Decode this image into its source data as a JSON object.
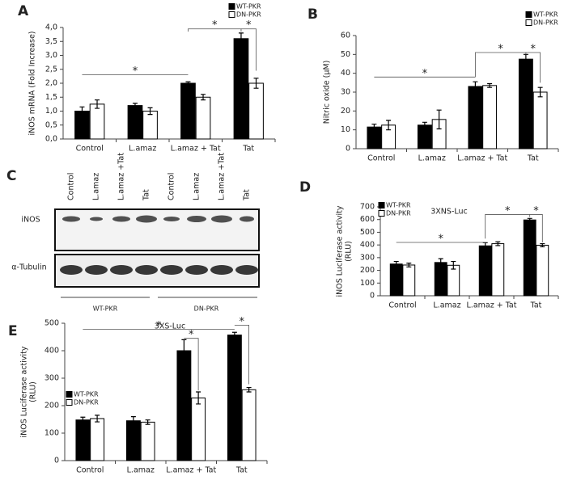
{
  "chart_data": [
    {
      "type": "bar",
      "panel": "A",
      "ylabel": "iNOS mRNA (Fold Increase)",
      "categories": [
        "Control",
        "L.amaz",
        "L.amaz + Tat",
        "Tat"
      ],
      "series": [
        {
          "name": "WT-PKR",
          "color": "#000000",
          "values": [
            1.0,
            1.2,
            2.0,
            3.6
          ],
          "errors": [
            0.15,
            0.08,
            0.05,
            0.2
          ]
        },
        {
          "name": "DN-PKR",
          "color": "#ffffff",
          "values": [
            1.25,
            1.0,
            1.5,
            2.0
          ],
          "errors": [
            0.15,
            0.12,
            0.1,
            0.18
          ]
        }
      ],
      "ylim": [
        0,
        4
      ],
      "yticks": [
        {
          "value": 0,
          "label": "0,0"
        },
        {
          "value": 0.5,
          "label": "0,5"
        },
        {
          "value": 1,
          "label": "1,0"
        },
        {
          "value": 1.5,
          "label": "1,5"
        },
        {
          "value": 2,
          "label": "2,0"
        },
        {
          "value": 2.5,
          "label": "2,5"
        },
        {
          "value": 3,
          "label": "3,0"
        },
        {
          "value": 3.5,
          "label": "3,5"
        },
        {
          "value": 4,
          "label": "4,0"
        }
      ],
      "annotations": [
        "*",
        "*",
        "*"
      ],
      "legend": "upper right"
    },
    {
      "type": "bar",
      "panel": "B",
      "ylabel": "Nitric oxide (µM)",
      "categories": [
        "Control",
        "L.amaz",
        "L.amaz + Tat",
        "Tat"
      ],
      "series": [
        {
          "name": "WT-PKR",
          "color": "#000000",
          "values": [
            11.5,
            12.5,
            33,
            47.5
          ],
          "errors": [
            1.5,
            1.5,
            2.5,
            2.5
          ]
        },
        {
          "name": "DN-PKR",
          "color": "#ffffff",
          "values": [
            12.5,
            15.5,
            33.5,
            30
          ],
          "errors": [
            2.5,
            5,
            1,
            2.5
          ]
        }
      ],
      "ylim": [
        0,
        60
      ],
      "yticks": [
        0,
        10,
        20,
        30,
        40,
        50,
        60
      ],
      "annotations": [
        "*",
        "*",
        "*"
      ],
      "legend": "upper right"
    },
    {
      "type": "bar",
      "panel": "D",
      "ylabel": [
        "iNOS Luciferase activity",
        "(RLU)"
      ],
      "subtitle": "3XNS-Luc",
      "categories": [
        "Control",
        "L.amaz",
        "L.amaz + Tat",
        "Tat"
      ],
      "series": [
        {
          "name": "WT-PKR",
          "color": "#000000",
          "values": [
            250,
            262,
            393,
            597
          ],
          "errors": [
            20,
            30,
            25,
            12
          ]
        },
        {
          "name": "DN-PKR",
          "color": "#ffffff",
          "values": [
            242,
            240,
            410,
            398
          ],
          "errors": [
            15,
            30,
            15,
            12
          ]
        }
      ],
      "ylim": [
        0,
        700
      ],
      "yticks": [
        0,
        100,
        200,
        300,
        400,
        500,
        600,
        700
      ],
      "annotations": [
        "*",
        "*",
        "*"
      ],
      "legend": "upper left"
    },
    {
      "type": "bar",
      "panel": "E",
      "ylabel": [
        "iNOS Luciferase activity",
        "(RLU)"
      ],
      "subtitle": "3XS-Luc",
      "categories": [
        "Control",
        "L.amaz",
        "L.amaz + Tat",
        "Tat"
      ],
      "series": [
        {
          "name": "WT-PKR",
          "color": "#000000",
          "values": [
            148,
            145,
            400,
            457
          ],
          "errors": [
            10,
            15,
            40,
            10
          ]
        },
        {
          "name": "DN-PKR",
          "color": "#ffffff",
          "values": [
            153,
            140,
            228,
            258
          ],
          "errors": [
            12,
            8,
            22,
            8
          ]
        }
      ],
      "ylim": [
        0,
        500
      ],
      "yticks": [
        0,
        100,
        200,
        300,
        400,
        500
      ],
      "annotations": [
        "*",
        "*",
        "*"
      ],
      "legend": "left"
    }
  ],
  "blot": {
    "panel": "C",
    "lanes": [
      "Control",
      "L.amaz",
      "L.amaz +Tat",
      "Tat",
      "Control",
      "L.amaz",
      "L.amaz +Tat",
      "Tat"
    ],
    "rows": [
      "iNOS",
      "α-Tubulin"
    ],
    "groups": [
      "WT-PKR",
      "DN-PKR"
    ]
  }
}
